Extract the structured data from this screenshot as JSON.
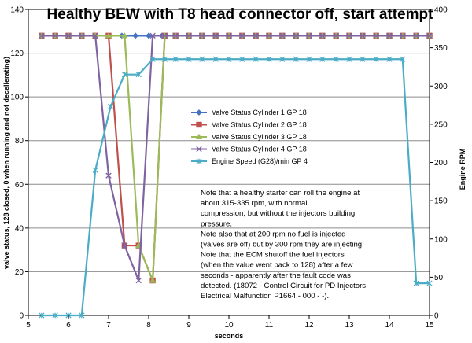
{
  "chart_data": {
    "type": "line",
    "title": "Healthy BEW with T8 head connector off, start attempt",
    "xlabel": "seconds",
    "ylabel": "valve status, 128 closed, 0 when running and not decellerating)",
    "y2label": "Engine RPM",
    "xlim": [
      5,
      15
    ],
    "ylim": [
      0,
      140
    ],
    "y2lim": [
      0,
      400
    ],
    "xticks": [
      "5",
      "6",
      "7",
      "8",
      "9",
      "10",
      "11",
      "12",
      "13",
      "14",
      "15"
    ],
    "yticks": [
      "0",
      "20",
      "40",
      "60",
      "80",
      "100",
      "120",
      "140"
    ],
    "y2ticks": [
      "0",
      "50",
      "100",
      "150",
      "200",
      "250",
      "300",
      "350",
      "400"
    ],
    "grid": true,
    "legend_position": "center-right",
    "series": [
      {
        "name": "Valve Status Cylinder 1 GP 18",
        "axis": "left",
        "color": "#4472C4",
        "marker": "diamond",
        "x": [
          5.33,
          5.67,
          6.0,
          6.33,
          6.67,
          7.0,
          7.33,
          7.67,
          8.0,
          8.33,
          8.67,
          9.0,
          9.33,
          9.67,
          10.0,
          10.33,
          10.67,
          11.0,
          11.33,
          11.67,
          12.0,
          12.33,
          12.67,
          13.0,
          13.33,
          13.67,
          14.0,
          14.33,
          14.67,
          15.0
        ],
        "y": [
          128,
          128,
          128,
          128,
          128,
          128,
          128,
          128,
          128,
          128,
          128,
          128,
          128,
          128,
          128,
          128,
          128,
          128,
          128,
          128,
          128,
          128,
          128,
          128,
          128,
          128,
          128,
          128,
          128,
          128
        ]
      },
      {
        "name": "Valve Status Cylinder 2 GP 18",
        "axis": "left",
        "color": "#C0504D",
        "marker": "square",
        "x": [
          5.33,
          5.67,
          6.0,
          6.33,
          6.67,
          7.0,
          7.4,
          7.75,
          8.1,
          8.4,
          8.67,
          9.0,
          9.33,
          9.67,
          10.0,
          10.33,
          10.67,
          11.0,
          11.33,
          11.67,
          12.0,
          12.33,
          12.67,
          13.0,
          13.33,
          13.67,
          14.0,
          14.33,
          14.67,
          15.0
        ],
        "y": [
          128,
          128,
          128,
          128,
          128,
          128,
          32,
          32,
          16,
          128,
          128,
          128,
          128,
          128,
          128,
          128,
          128,
          128,
          128,
          128,
          128,
          128,
          128,
          128,
          128,
          128,
          128,
          128,
          128,
          128
        ]
      },
      {
        "name": "Valve Status Cylinder 3 GP 18",
        "axis": "left",
        "color": "#9BBB59",
        "marker": "triangle",
        "x": [
          5.33,
          5.67,
          6.0,
          6.33,
          6.67,
          7.0,
          7.4,
          7.75,
          8.1,
          8.4,
          8.67,
          9.0,
          9.33,
          9.67,
          10.0,
          10.33,
          10.67,
          11.0,
          11.33,
          11.67,
          12.0,
          12.33,
          12.67,
          13.0,
          13.33,
          13.67,
          14.0,
          14.33,
          14.67,
          15.0
        ],
        "y": [
          128,
          128,
          128,
          128,
          128,
          128,
          128,
          32,
          16,
          128,
          128,
          128,
          128,
          128,
          128,
          128,
          128,
          128,
          128,
          128,
          128,
          128,
          128,
          128,
          128,
          128,
          128,
          128,
          128,
          128
        ]
      },
      {
        "name": "Valve Status Cylinder 4 GP 18",
        "axis": "left",
        "color": "#8064A2",
        "marker": "x",
        "x": [
          5.33,
          5.67,
          6.0,
          6.33,
          6.67,
          7.0,
          7.4,
          7.75,
          8.1,
          8.4,
          8.67,
          9.0,
          9.33,
          9.67,
          10.0,
          10.33,
          10.67,
          11.0,
          11.33,
          11.67,
          12.0,
          12.33,
          12.67,
          13.0,
          13.33,
          13.67,
          14.0,
          14.33,
          14.67,
          15.0
        ],
        "y": [
          128,
          128,
          128,
          128,
          128,
          64,
          32,
          16,
          128,
          128,
          128,
          128,
          128,
          128,
          128,
          128,
          128,
          128,
          128,
          128,
          128,
          128,
          128,
          128,
          128,
          128,
          128,
          128,
          128,
          128
        ]
      },
      {
        "name": "Engine Speed (G28)/min GP 4",
        "axis": "right",
        "color": "#4BACC6",
        "marker": "asterisk",
        "x": [
          5.33,
          5.67,
          6.0,
          6.33,
          6.67,
          7.05,
          7.4,
          7.75,
          8.1,
          8.4,
          8.67,
          9.0,
          9.33,
          9.67,
          10.0,
          10.33,
          10.67,
          11.0,
          11.33,
          11.67,
          12.0,
          12.33,
          12.67,
          13.0,
          13.33,
          13.67,
          14.0,
          14.33,
          14.67,
          15.0
        ],
        "y": [
          0,
          0,
          0,
          0,
          190,
          273,
          315,
          315,
          335,
          335,
          335,
          335,
          335,
          335,
          335,
          335,
          335,
          335,
          335,
          335,
          335,
          335,
          335,
          335,
          335,
          335,
          335,
          335,
          42,
          42
        ]
      }
    ],
    "annotation_lines": [
      "Note that a healthy starter can roll the engine at",
      "about 315-335 rpm, with normal",
      "compression, but without the injectors building",
      "pressure.",
      "Note also that at 200 rpm no fuel is injected",
      "(valves are off) but by 300 rpm they are injecting.",
      "Note that the ECM shutoff the fuel injectors",
      "(when the value went back to 128) after a few",
      "seconds - apparently after the fault code was",
      "detected. (18072 - Control Circuit for PD Injectors:",
      "Electrical Malfunction P1664 - 000 -  -)."
    ]
  }
}
